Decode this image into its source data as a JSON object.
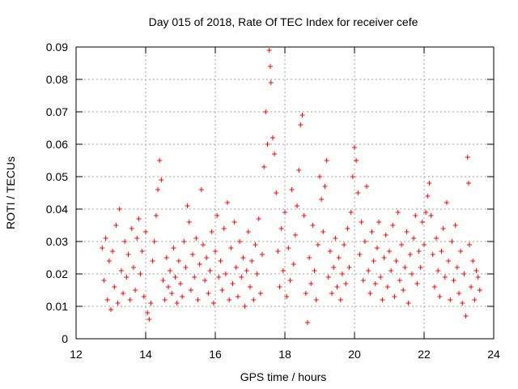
{
  "chart_data": {
    "type": "scatter",
    "title": "Day 015 of 2018, Rate Of TEC Index for receiver cefe",
    "xlabel": "GPS time / hours",
    "ylabel": "ROTI / TECUs",
    "xlim": [
      12,
      24
    ],
    "ylim": [
      0,
      0.09
    ],
    "x_ticks": [
      "12",
      "14",
      "16",
      "18",
      "20",
      "22",
      "24"
    ],
    "y_ticks": [
      "0",
      "0.01",
      "0.02",
      "0.03",
      "0.04",
      "0.05",
      "0.06",
      "0.07",
      "0.08",
      "0.09"
    ],
    "grid": true,
    "marker": "+",
    "series_color": "#ff0000",
    "series": [
      {
        "name": "ROTI",
        "points": [
          [
            12.75,
            0.028
          ],
          [
            12.8,
            0.018
          ],
          [
            12.85,
            0.031
          ],
          [
            12.9,
            0.012
          ],
          [
            12.95,
            0.024
          ],
          [
            13.0,
            0.009
          ],
          [
            13.05,
            0.027
          ],
          [
            13.1,
            0.016
          ],
          [
            13.15,
            0.035
          ],
          [
            13.2,
            0.011
          ],
          [
            13.25,
            0.04
          ],
          [
            13.3,
            0.021
          ],
          [
            13.35,
            0.014
          ],
          [
            13.4,
            0.03
          ],
          [
            13.45,
            0.019
          ],
          [
            13.5,
            0.026
          ],
          [
            13.55,
            0.012
          ],
          [
            13.6,
            0.034
          ],
          [
            13.65,
            0.022
          ],
          [
            13.7,
            0.015
          ],
          [
            13.75,
            0.031
          ],
          [
            13.8,
            0.037
          ],
          [
            13.85,
            0.02
          ],
          [
            13.9,
            0.027
          ],
          [
            13.95,
            0.013
          ],
          [
            14.0,
            0.033
          ],
          [
            14.05,
            0.008
          ],
          [
            14.1,
            0.006
          ],
          [
            14.15,
            0.011
          ],
          [
            14.2,
            0.024
          ],
          [
            14.25,
            0.03
          ],
          [
            14.3,
            0.038
          ],
          [
            14.35,
            0.046
          ],
          [
            14.4,
            0.055
          ],
          [
            14.45,
            0.049
          ],
          [
            14.5,
            0.018
          ],
          [
            14.55,
            0.012
          ],
          [
            14.6,
            0.025
          ],
          [
            14.65,
            0.016
          ],
          [
            14.7,
            0.021
          ],
          [
            14.75,
            0.014
          ],
          [
            14.8,
            0.028
          ],
          [
            14.85,
            0.019
          ],
          [
            14.9,
            0.011
          ],
          [
            14.95,
            0.024
          ],
          [
            15.0,
            0.017
          ],
          [
            15.05,
            0.013
          ],
          [
            15.1,
            0.03
          ],
          [
            15.15,
            0.022
          ],
          [
            15.2,
            0.041
          ],
          [
            15.25,
            0.036
          ],
          [
            15.3,
            0.015
          ],
          [
            15.35,
            0.026
          ],
          [
            15.4,
            0.019
          ],
          [
            15.45,
            0.031
          ],
          [
            15.5,
            0.012
          ],
          [
            15.55,
            0.023
          ],
          [
            15.6,
            0.046
          ],
          [
            15.65,
            0.029
          ],
          [
            15.7,
            0.018
          ],
          [
            15.75,
            0.025
          ],
          [
            15.8,
            0.014
          ],
          [
            15.85,
            0.021
          ],
          [
            15.9,
            0.033
          ],
          [
            15.95,
            0.011
          ],
          [
            16.0,
            0.027
          ],
          [
            16.05,
            0.038
          ],
          [
            16.1,
            0.019
          ],
          [
            16.15,
            0.024
          ],
          [
            16.2,
            0.015
          ],
          [
            16.25,
            0.034
          ],
          [
            16.3,
            0.02
          ],
          [
            16.35,
            0.042
          ],
          [
            16.4,
            0.012
          ],
          [
            16.45,
            0.028
          ],
          [
            16.5,
            0.017
          ],
          [
            16.55,
            0.036
          ],
          [
            16.6,
            0.022
          ],
          [
            16.65,
            0.013
          ],
          [
            16.7,
            0.03
          ],
          [
            16.75,
            0.019
          ],
          [
            16.8,
            0.025
          ],
          [
            16.85,
            0.01
          ],
          [
            16.9,
            0.021
          ],
          [
            16.95,
            0.033
          ],
          [
            17.0,
            0.016
          ],
          [
            17.05,
            0.024
          ],
          [
            17.1,
            0.012
          ],
          [
            17.15,
            0.029
          ],
          [
            17.2,
            0.02
          ],
          [
            17.25,
            0.037
          ],
          [
            17.3,
            0.014
          ],
          [
            17.35,
            0.026
          ],
          [
            17.4,
            0.053
          ],
          [
            17.45,
            0.07
          ],
          [
            17.5,
            0.06
          ],
          [
            17.55,
            0.089
          ],
          [
            17.58,
            0.084
          ],
          [
            17.6,
            0.079
          ],
          [
            17.65,
            0.062
          ],
          [
            17.7,
            0.057
          ],
          [
            17.75,
            0.045
          ],
          [
            17.8,
            0.027
          ],
          [
            17.85,
            0.016
          ],
          [
            17.9,
            0.034
          ],
          [
            17.95,
            0.021
          ],
          [
            18.0,
            0.039
          ],
          [
            18.05,
            0.013
          ],
          [
            18.1,
            0.028
          ],
          [
            18.15,
            0.018
          ],
          [
            18.2,
            0.046
          ],
          [
            18.25,
            0.023
          ],
          [
            18.3,
            0.032
          ],
          [
            18.35,
            0.041
          ],
          [
            18.4,
            0.052
          ],
          [
            18.45,
            0.066
          ],
          [
            18.5,
            0.069
          ],
          [
            18.55,
            0.038
          ],
          [
            18.6,
            0.014
          ],
          [
            18.65,
            0.005
          ],
          [
            18.7,
            0.025
          ],
          [
            18.75,
            0.017
          ],
          [
            18.8,
            0.035
          ],
          [
            18.85,
            0.021
          ],
          [
            18.9,
            0.012
          ],
          [
            18.95,
            0.029
          ],
          [
            19.0,
            0.05
          ],
          [
            19.05,
            0.043
          ],
          [
            19.1,
            0.033
          ],
          [
            19.15,
            0.047
          ],
          [
            19.2,
            0.055
          ],
          [
            19.25,
            0.019
          ],
          [
            19.3,
            0.027
          ],
          [
            19.35,
            0.014
          ],
          [
            19.4,
            0.022
          ],
          [
            19.45,
            0.031
          ],
          [
            19.5,
            0.016
          ],
          [
            19.55,
            0.025
          ],
          [
            19.6,
            0.012
          ],
          [
            19.65,
            0.02
          ],
          [
            19.7,
            0.029
          ],
          [
            19.75,
            0.017
          ],
          [
            19.8,
            0.034
          ],
          [
            19.85,
            0.022
          ],
          [
            19.9,
            0.039
          ],
          [
            19.95,
            0.05
          ],
          [
            20.0,
            0.059
          ],
          [
            20.05,
            0.055
          ],
          [
            20.1,
            0.045
          ],
          [
            20.15,
            0.026
          ],
          [
            20.2,
            0.036
          ],
          [
            20.25,
            0.018
          ],
          [
            20.3,
            0.03
          ],
          [
            20.35,
            0.047
          ],
          [
            20.4,
            0.021
          ],
          [
            20.45,
            0.014
          ],
          [
            20.5,
            0.033
          ],
          [
            20.55,
            0.024
          ],
          [
            20.6,
            0.017
          ],
          [
            20.65,
            0.028
          ],
          [
            20.7,
            0.036
          ],
          [
            20.75,
            0.019
          ],
          [
            20.8,
            0.012
          ],
          [
            20.85,
            0.025
          ],
          [
            20.9,
            0.032
          ],
          [
            20.95,
            0.016
          ],
          [
            21.0,
            0.027
          ],
          [
            21.05,
            0.021
          ],
          [
            21.1,
            0.035
          ],
          [
            21.15,
            0.013
          ],
          [
            21.2,
            0.024
          ],
          [
            21.25,
            0.039
          ],
          [
            21.3,
            0.018
          ],
          [
            21.35,
            0.029
          ],
          [
            21.4,
            0.015
          ],
          [
            21.45,
            0.022
          ],
          [
            21.5,
            0.033
          ],
          [
            21.55,
            0.011
          ],
          [
            21.6,
            0.026
          ],
          [
            21.65,
            0.02
          ],
          [
            21.7,
            0.031
          ],
          [
            21.75,
            0.038
          ],
          [
            21.8,
            0.017
          ],
          [
            21.85,
            0.027
          ],
          [
            21.9,
            0.022
          ],
          [
            21.95,
            0.036
          ],
          [
            22.0,
            0.029
          ],
          [
            22.05,
            0.039
          ],
          [
            22.1,
            0.044
          ],
          [
            22.15,
            0.048
          ],
          [
            22.2,
            0.038
          ],
          [
            22.25,
            0.026
          ],
          [
            22.3,
            0.016
          ],
          [
            22.35,
            0.031
          ],
          [
            22.4,
            0.021
          ],
          [
            22.45,
            0.013
          ],
          [
            22.5,
            0.027
          ],
          [
            22.55,
            0.034
          ],
          [
            22.6,
            0.019
          ],
          [
            22.65,
            0.042
          ],
          [
            22.7,
            0.024
          ],
          [
            22.75,
            0.012
          ],
          [
            22.8,
            0.03
          ],
          [
            22.85,
            0.018
          ],
          [
            22.9,
            0.035
          ],
          [
            22.95,
            0.022
          ],
          [
            23.0,
            0.014
          ],
          [
            23.05,
            0.027
          ],
          [
            23.1,
            0.011
          ],
          [
            23.15,
            0.02
          ],
          [
            23.2,
            0.007
          ],
          [
            23.25,
            0.056
          ],
          [
            23.28,
            0.048
          ],
          [
            23.3,
            0.029
          ],
          [
            23.35,
            0.016
          ],
          [
            23.4,
            0.024
          ],
          [
            23.45,
            0.012
          ],
          [
            23.5,
            0.021
          ],
          [
            23.55,
            0.019
          ],
          [
            23.6,
            0.015
          ]
        ]
      }
    ]
  }
}
